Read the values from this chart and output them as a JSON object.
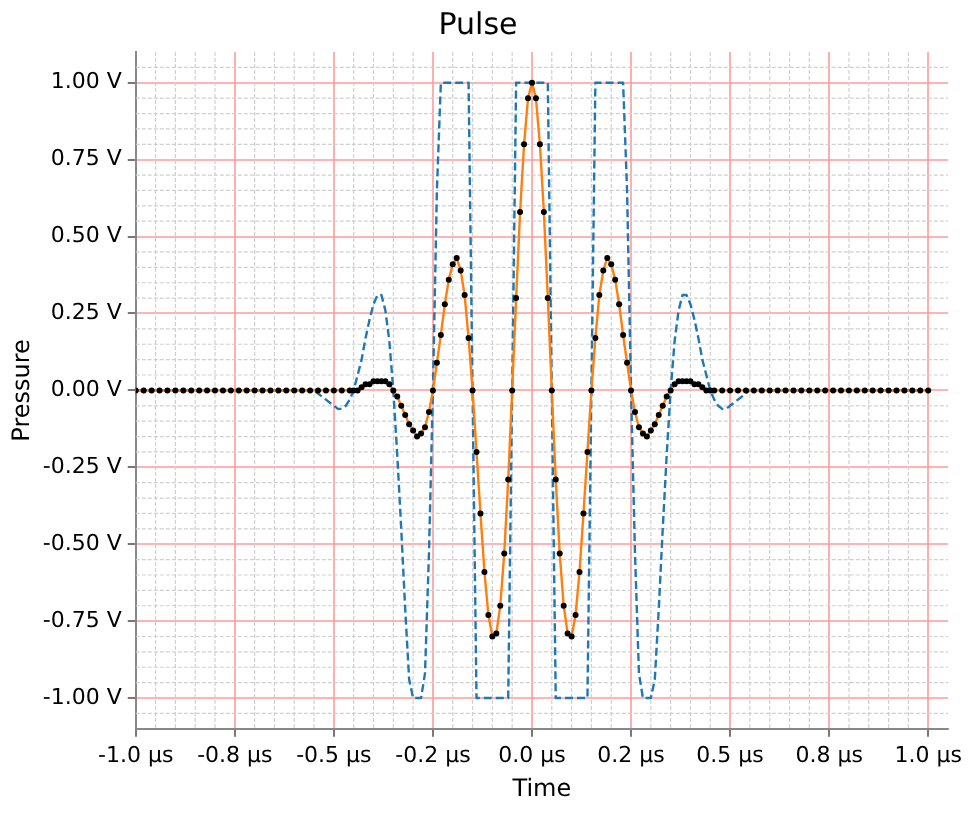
{
  "chart_data": {
    "type": "line",
    "title": "Pulse",
    "xlabel": "Time",
    "ylabel": "Pressure",
    "xlim": [
      -1.0,
      1.05
    ],
    "ylim": [
      -1.1,
      1.1
    ],
    "xticks": [
      {
        "value": -1.0,
        "label": "-1.0 µs"
      },
      {
        "value": -0.75,
        "label": "-0.8 µs"
      },
      {
        "value": -0.5,
        "label": "-0.5 µs"
      },
      {
        "value": -0.25,
        "label": "-0.2 µs"
      },
      {
        "value": 0,
        "label": "0.0 µs"
      },
      {
        "value": 0.25,
        "label": "0.2 µs"
      },
      {
        "value": 0.5,
        "label": "0.5 µs"
      },
      {
        "value": 0.75,
        "label": "0.8 µs"
      },
      {
        "value": 1.0,
        "label": "1.0 µs"
      }
    ],
    "yticks": [
      {
        "value": -1.0,
        "label": "-1.00 V"
      },
      {
        "value": -0.75,
        "label": "-0.75 V"
      },
      {
        "value": -0.5,
        "label": "-0.50 V"
      },
      {
        "value": -0.25,
        "label": "-0.25 V"
      },
      {
        "value": 0,
        "label": "0.00 V"
      },
      {
        "value": 0.25,
        "label": "0.25 V"
      },
      {
        "value": 0.5,
        "label": "0.50 V"
      },
      {
        "value": 0.75,
        "label": "0.75 V"
      },
      {
        "value": 1.0,
        "label": "1.00 V"
      }
    ],
    "grid": true,
    "legend": false,
    "series": [
      {
        "color": "#1f77b4",
        "line_style": "dashed",
        "marker": "none",
        "x": [
          -1.0,
          -0.55,
          -0.54,
          -0.53,
          -0.52,
          -0.51,
          -0.5,
          -0.49,
          -0.48,
          -0.47,
          -0.46,
          -0.45,
          -0.44,
          -0.43,
          -0.42,
          -0.41,
          -0.4,
          -0.39,
          -0.38,
          -0.37,
          -0.36,
          -0.35,
          -0.34,
          -0.33,
          -0.32,
          -0.31,
          -0.3,
          -0.29,
          -0.28,
          -0.27,
          -0.26,
          -0.25,
          -0.24,
          -0.23,
          -0.22,
          -0.21,
          -0.2,
          -0.19,
          -0.18,
          -0.17,
          -0.16,
          -0.15,
          -0.14,
          -0.13,
          -0.12,
          -0.11,
          -0.1,
          -0.09,
          -0.08,
          -0.07,
          -0.06,
          -0.05,
          -0.04,
          -0.03,
          -0.02,
          -0.01,
          0,
          0.01,
          0.02,
          0.03,
          0.04,
          0.05,
          0.06,
          0.07,
          0.08,
          0.09,
          0.1,
          0.11,
          0.12,
          0.13,
          0.14,
          0.15,
          0.16,
          0.17,
          0.18,
          0.19,
          0.2,
          0.21,
          0.22,
          0.23,
          0.24,
          0.25,
          0.26,
          0.27,
          0.28,
          0.29,
          0.3,
          0.31,
          0.32,
          0.33,
          0.34,
          0.35,
          0.36,
          0.37,
          0.38,
          0.39,
          0.4,
          0.41,
          0.42,
          0.43,
          0.44,
          0.45,
          0.46,
          0.47,
          0.48,
          0.49,
          0.5,
          0.51,
          0.52,
          0.53,
          0.54,
          0.55,
          1.0
        ],
        "values": [
          0,
          0,
          -0.01,
          -0.02,
          -0.03,
          -0.04,
          -0.05,
          -0.06,
          -0.06,
          -0.05,
          -0.03,
          0,
          0.05,
          0.1,
          0.17,
          0.23,
          0.28,
          0.31,
          0.31,
          0.26,
          0.16,
          0,
          -0.21,
          -0.45,
          -0.71,
          -0.94,
          -1,
          -1,
          -1,
          -0.92,
          -0.53,
          0,
          0.65,
          1,
          1,
          1,
          1,
          1,
          1,
          1,
          1,
          0,
          -1,
          -1,
          -1,
          -1,
          -1,
          -1,
          -1,
          -1,
          -1,
          0,
          1,
          1,
          1,
          1,
          1,
          1,
          1,
          1,
          1,
          0,
          -1,
          -1,
          -1,
          -1,
          -1,
          -1,
          -1,
          -1,
          -1,
          0,
          1,
          1,
          1,
          1,
          1,
          1,
          1,
          1,
          0.65,
          0,
          -0.53,
          -0.92,
          -1,
          -1,
          -1,
          -0.94,
          -0.71,
          -0.45,
          -0.21,
          0,
          0.16,
          0.26,
          0.31,
          0.31,
          0.28,
          0.23,
          0.17,
          0.1,
          0.05,
          0,
          -0.03,
          -0.05,
          -0.06,
          -0.06,
          -0.05,
          -0.04,
          -0.03,
          -0.02,
          -0.01,
          0,
          0
        ]
      },
      {
        "color": "#ff7f0e",
        "line_style": "solid",
        "marker": "circle",
        "x": [
          -1.0,
          -0.98,
          -0.96,
          -0.94,
          -0.92,
          -0.9,
          -0.88,
          -0.86,
          -0.84,
          -0.82,
          -0.8,
          -0.78,
          -0.76,
          -0.74,
          -0.72,
          -0.7,
          -0.68,
          -0.66,
          -0.64,
          -0.62,
          -0.6,
          -0.58,
          -0.56,
          -0.54,
          -0.52,
          -0.5,
          -0.48,
          -0.46,
          -0.45,
          -0.44,
          -0.43,
          -0.42,
          -0.41,
          -0.4,
          -0.39,
          -0.38,
          -0.37,
          -0.36,
          -0.35,
          -0.34,
          -0.33,
          -0.32,
          -0.31,
          -0.3,
          -0.29,
          -0.28,
          -0.27,
          -0.26,
          -0.25,
          -0.24,
          -0.23,
          -0.22,
          -0.21,
          -0.2,
          -0.19,
          -0.18,
          -0.17,
          -0.16,
          -0.15,
          -0.14,
          -0.13,
          -0.12,
          -0.11,
          -0.1,
          -0.09,
          -0.08,
          -0.07,
          -0.06,
          -0.05,
          -0.04,
          -0.03,
          -0.02,
          -0.01,
          0,
          0.01,
          0.02,
          0.03,
          0.04,
          0.05,
          0.06,
          0.07,
          0.08,
          0.09,
          0.1,
          0.11,
          0.12,
          0.13,
          0.14,
          0.15,
          0.16,
          0.17,
          0.18,
          0.19,
          0.2,
          0.21,
          0.22,
          0.23,
          0.24,
          0.25,
          0.26,
          0.27,
          0.28,
          0.29,
          0.3,
          0.31,
          0.32,
          0.33,
          0.34,
          0.35,
          0.36,
          0.37,
          0.38,
          0.39,
          0.4,
          0.41,
          0.42,
          0.43,
          0.44,
          0.45,
          0.46,
          0.48,
          0.5,
          0.52,
          0.54,
          0.56,
          0.58,
          0.6,
          0.62,
          0.64,
          0.66,
          0.68,
          0.7,
          0.72,
          0.74,
          0.76,
          0.78,
          0.8,
          0.82,
          0.84,
          0.86,
          0.88,
          0.9,
          0.92,
          0.94,
          0.96,
          0.98,
          1.0
        ],
        "values": [
          0,
          0,
          0,
          0,
          0,
          0,
          0,
          0,
          0,
          0,
          0,
          0,
          0,
          0,
          0,
          0,
          0,
          0,
          0,
          0,
          0,
          0,
          0,
          0,
          0,
          0,
          0,
          0,
          0,
          0,
          0.01,
          0.02,
          0.02,
          0.03,
          0.03,
          0.03,
          0.03,
          0.02,
          0,
          -0.02,
          -0.05,
          -0.08,
          -0.11,
          -0.13,
          -0.15,
          -0.14,
          -0.12,
          -0.07,
          0,
          0.09,
          0.18,
          0.28,
          0.36,
          0.41,
          0.43,
          0.39,
          0.31,
          0.17,
          0,
          -0.2,
          -0.4,
          -0.59,
          -0.73,
          -0.8,
          -0.79,
          -0.7,
          -0.53,
          -0.29,
          0,
          0.3,
          0.58,
          0.8,
          0.95,
          1,
          0.95,
          0.8,
          0.58,
          0.3,
          0,
          -0.29,
          -0.53,
          -0.7,
          -0.79,
          -0.8,
          -0.73,
          -0.59,
          -0.4,
          -0.2,
          0,
          0.17,
          0.31,
          0.39,
          0.43,
          0.41,
          0.36,
          0.28,
          0.18,
          0.09,
          0,
          -0.07,
          -0.12,
          -0.14,
          -0.15,
          -0.13,
          -0.11,
          -0.08,
          -0.05,
          -0.02,
          0,
          0.02,
          0.03,
          0.03,
          0.03,
          0.03,
          0.02,
          0.02,
          0.01,
          0,
          0,
          0,
          0,
          0,
          0,
          0,
          0,
          0,
          0,
          0,
          0,
          0,
          0,
          0,
          0,
          0,
          0,
          0,
          0,
          0,
          0,
          0,
          0,
          0,
          0,
          0,
          0,
          0,
          0
        ]
      }
    ]
  }
}
